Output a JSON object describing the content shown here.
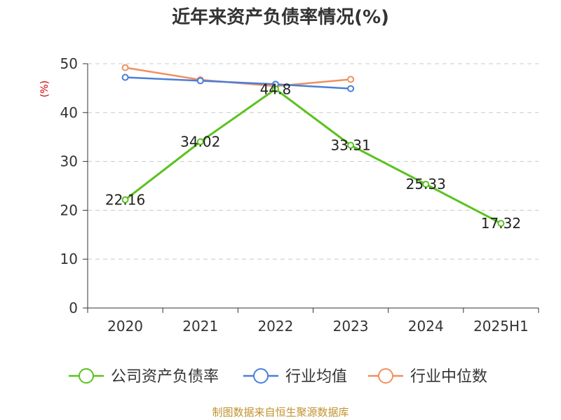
{
  "chart_data": {
    "type": "line",
    "title": "近年来资产负债率情况(%)",
    "ylabel": "(%)",
    "xlabel": "",
    "categories": [
      "2020",
      "2021",
      "2022",
      "2023",
      "2024",
      "2025H1"
    ],
    "yticks": [
      "0",
      "10",
      "20",
      "30",
      "40",
      "50"
    ],
    "ylim": [
      0,
      50
    ],
    "grid": true,
    "legend_position": "bottom",
    "series": [
      {
        "name": "公司资产负债率",
        "values": [
          22.16,
          34.02,
          44.8,
          33.31,
          25.33,
          17.32
        ],
        "labels": [
          "22.16",
          "34.02",
          "44.8",
          "33.31",
          "25.33",
          "17.32"
        ],
        "color": "#5ac21e"
      },
      {
        "name": "行业均值",
        "values": [
          47.2,
          46.5,
          45.8,
          44.9,
          null,
          null
        ],
        "color": "#4a7fd8"
      },
      {
        "name": "行业中位数",
        "values": [
          49.2,
          46.7,
          45.4,
          46.8,
          null,
          null
        ],
        "color": "#f09060"
      }
    ],
    "source": "制图数据来自恒生聚源数据库"
  }
}
